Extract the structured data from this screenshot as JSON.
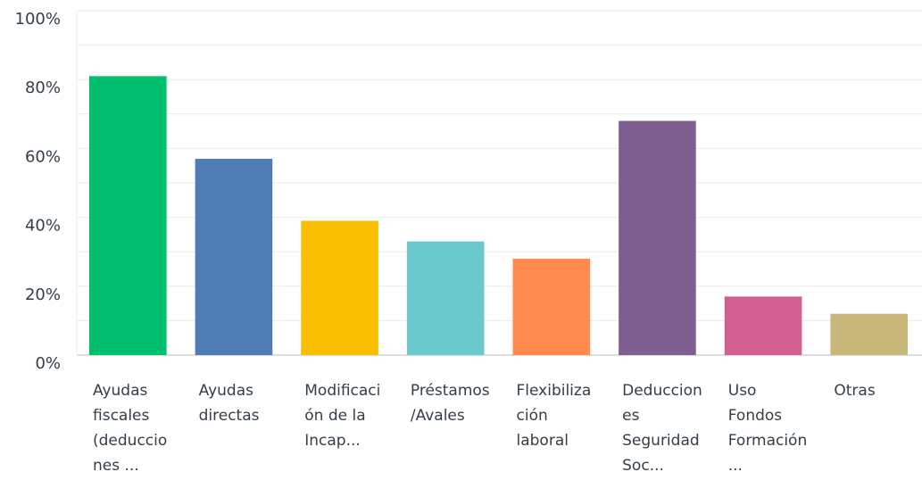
{
  "chart_data": {
    "type": "bar",
    "categories": [
      "Ayudas fiscales (deducciones ...",
      "Ayudas directas",
      "Modificación de la Incap...",
      "Préstamos/Avales",
      "Flexibilización laboral",
      "Deducciones Seguridad Soc...",
      "Uso Fondos Formación...",
      "Otras"
    ],
    "values": [
      81,
      57,
      39,
      33,
      28,
      68,
      17,
      12
    ],
    "colors": [
      "#00bf6f",
      "#507cb6",
      "#f9be00",
      "#6bc8cd",
      "#ff8b4f",
      "#7f5e91",
      "#d25f90",
      "#c7b879"
    ],
    "ylim": [
      0,
      100
    ],
    "yticks": [
      {
        "value": 0,
        "label": "0%"
      },
      {
        "value": 20,
        "label": "20%"
      },
      {
        "value": 40,
        "label": "40%"
      },
      {
        "value": 60,
        "label": "60%"
      },
      {
        "value": 80,
        "label": "80%"
      },
      {
        "value": 100,
        "label": "100%"
      }
    ],
    "minor_yticks": [
      10,
      30,
      50,
      70,
      90
    ],
    "grid": true
  }
}
